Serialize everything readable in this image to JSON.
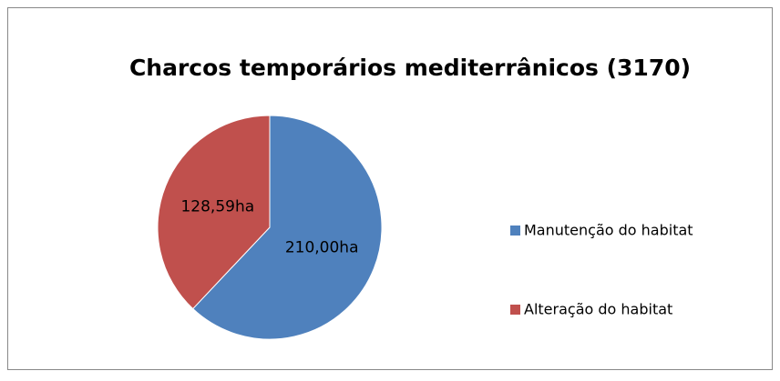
{
  "chart_data": {
    "type": "pie",
    "title": "Charcos temporários mediterrânicos (3170)",
    "categories": [
      "Manutenção do habitat",
      "Alteração do habitat"
    ],
    "values": [
      210.0,
      128.59
    ],
    "value_labels": [
      "210,00ha",
      "128,59ha"
    ],
    "colors": [
      "#4f81bd",
      "#c0504d"
    ],
    "legend": "right"
  }
}
